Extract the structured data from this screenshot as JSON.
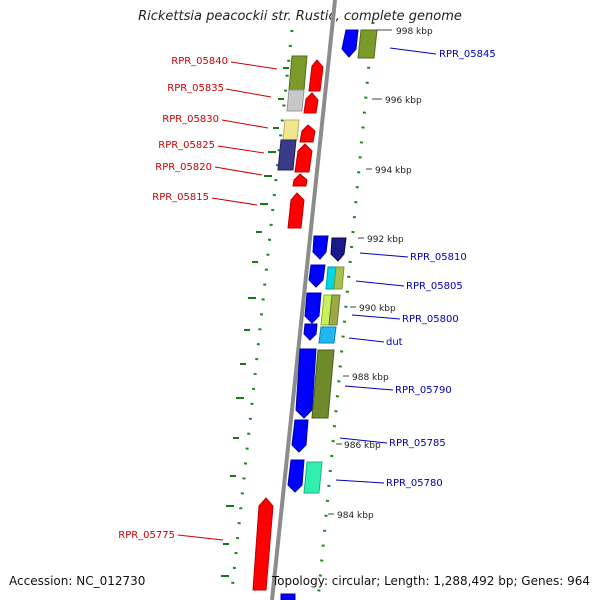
{
  "title": "Rickettsia peacockii str. Rustic, complete genome",
  "accession": "Accession: NC_012730",
  "summary": "Topology: circular; Length: 1,288,492 bp; Genes: 964",
  "colors": {
    "backbone": "#8c8c8c",
    "reverse_label": "#cc0000",
    "forward_label": "#0000bb",
    "tick_dots": "#1a8a1a"
  },
  "ticks": [
    "998 kbp",
    "996 kbp",
    "994 kbp",
    "992 kbp",
    "990 kbp",
    "988 kbp",
    "986 kbp",
    "984 kbp"
  ],
  "reverse_genes": [
    "RPR_05840",
    "RPR_05835",
    "RPR_05830",
    "RPR_05825",
    "RPR_05820",
    "RPR_05815",
    "RPR_05775"
  ],
  "forward_genes": [
    "RPR_05845",
    "RPR_05810",
    "RPR_05805",
    "RPR_05800",
    "dut",
    "RPR_05790",
    "RPR_05785",
    "RPR_05780"
  ]
}
